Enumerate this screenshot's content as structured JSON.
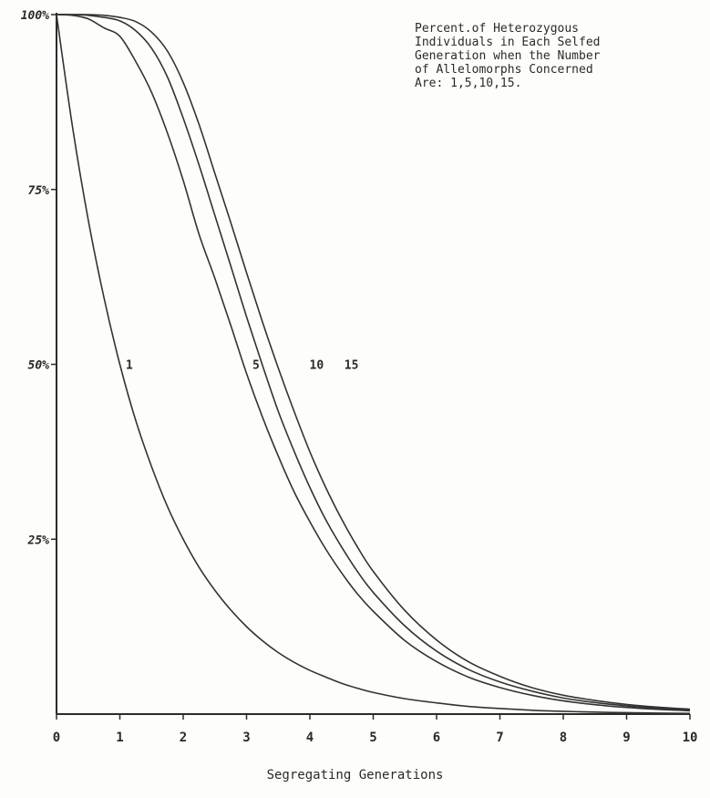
{
  "chart_data": {
    "type": "line",
    "title_lines": [
      "Percent.of Heterozygous",
      "Individuals in Each Selfed",
      "Generation when the Number",
      "of Allelomorphs Concerned",
      "Are: 1,5,10,15."
    ],
    "xlabel": "Segregating Generations",
    "ylabel": "",
    "x_ticks": [
      "0",
      "1",
      "2",
      "3",
      "4",
      "5",
      "6",
      "7",
      "8",
      "9",
      "10"
    ],
    "y_ticks": [
      {
        "value": 25,
        "label": "25%"
      },
      {
        "value": 50,
        "label": "50%"
      },
      {
        "value": 75,
        "label": "75%"
      },
      {
        "value": 100,
        "label": "100%"
      }
    ],
    "xlim": [
      0,
      10
    ],
    "ylim": [
      0,
      100
    ],
    "grid": false,
    "x": [
      0,
      0.25,
      0.5,
      0.75,
      1,
      1.25,
      1.5,
      1.75,
      2,
      2.25,
      2.5,
      2.75,
      3,
      3.25,
      3.5,
      3.75,
      4,
      4.25,
      4.5,
      4.75,
      5,
      5.5,
      6,
      6.5,
      7,
      7.5,
      8,
      8.5,
      9,
      9.5,
      10
    ],
    "series": [
      {
        "name": "1",
        "label_at": {
          "x": 1.05,
          "y": 50
        },
        "values": [
          100,
          84.1,
          70.7,
          59.5,
          50,
          42,
          35.4,
          29.7,
          25,
          21,
          17.7,
          14.9,
          12.5,
          10.5,
          8.8,
          7.4,
          6.25,
          5.3,
          4.4,
          3.7,
          3.1,
          2.2,
          1.6,
          1.1,
          0.8,
          0.55,
          0.4,
          0.28,
          0.2,
          0.14,
          0.1
        ]
      },
      {
        "name": "5",
        "label_at": {
          "x": 3.05,
          "y": 50
        },
        "values": [
          100,
          99.9,
          99.4,
          98.1,
          96.9,
          93.3,
          88.9,
          83.1,
          76.3,
          68.6,
          62.3,
          55.6,
          48.7,
          42.5,
          36.9,
          31.8,
          27.5,
          23.6,
          20.2,
          17.2,
          14.7,
          10.5,
          7.5,
          5.3,
          3.8,
          2.7,
          1.9,
          1.35,
          0.95,
          0.67,
          0.48
        ]
      },
      {
        "name": "10",
        "label_at": {
          "x": 3.95,
          "y": 50
        },
        "values": [
          100,
          100,
          99.9,
          99.6,
          99.1,
          97.7,
          95.2,
          91.1,
          85.2,
          78.5,
          71.3,
          64.1,
          56.8,
          49.9,
          43.3,
          37.6,
          32.4,
          27.8,
          23.9,
          20.4,
          17.4,
          12.6,
          9,
          6.4,
          4.6,
          3.3,
          2.3,
          1.65,
          1.17,
          0.83,
          0.59
        ]
      },
      {
        "name": "15",
        "label_at": {
          "x": 4.5,
          "y": 50
        },
        "values": [
          100,
          100,
          100,
          99.9,
          99.6,
          99,
          97.5,
          94.8,
          90.3,
          84.3,
          77.3,
          70.3,
          63.1,
          56.1,
          49.5,
          43.3,
          37.5,
          32.4,
          27.9,
          23.9,
          20.4,
          14.8,
          10.6,
          7.5,
          5.4,
          3.8,
          2.7,
          1.95,
          1.38,
          0.98,
          0.7
        ]
      }
    ]
  }
}
